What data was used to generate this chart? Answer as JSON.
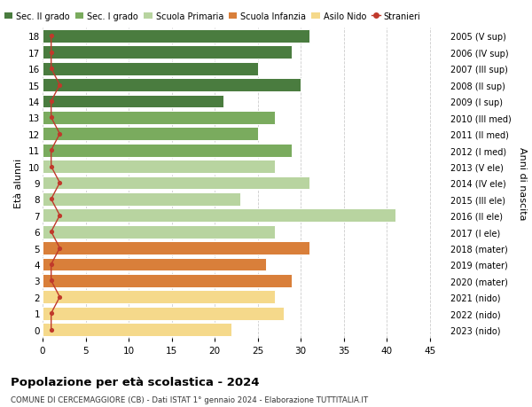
{
  "ages": [
    18,
    17,
    16,
    15,
    14,
    13,
    12,
    11,
    10,
    9,
    8,
    7,
    6,
    5,
    4,
    3,
    2,
    1,
    0
  ],
  "right_labels": [
    "2005 (V sup)",
    "2006 (IV sup)",
    "2007 (III sup)",
    "2008 (II sup)",
    "2009 (I sup)",
    "2010 (III med)",
    "2011 (II med)",
    "2012 (I med)",
    "2013 (V ele)",
    "2014 (IV ele)",
    "2015 (III ele)",
    "2016 (II ele)",
    "2017 (I ele)",
    "2018 (mater)",
    "2019 (mater)",
    "2020 (mater)",
    "2021 (nido)",
    "2022 (nido)",
    "2023 (nido)"
  ],
  "bar_values": [
    31,
    29,
    25,
    30,
    21,
    27,
    25,
    29,
    27,
    31,
    23,
    41,
    27,
    31,
    26,
    29,
    27,
    28,
    22
  ],
  "stranieri_values": [
    1,
    1,
    1,
    2,
    1,
    1,
    2,
    1,
    1,
    2,
    1,
    2,
    1,
    2,
    1,
    1,
    2,
    1,
    1
  ],
  "bar_colors": [
    "#4a7c3f",
    "#4a7c3f",
    "#4a7c3f",
    "#4a7c3f",
    "#4a7c3f",
    "#7aab5e",
    "#7aab5e",
    "#7aab5e",
    "#b8d4a0",
    "#b8d4a0",
    "#b8d4a0",
    "#b8d4a0",
    "#b8d4a0",
    "#d97f3a",
    "#d97f3a",
    "#d97f3a",
    "#f5d98b",
    "#f5d98b",
    "#f5d98b"
  ],
  "legend_labels": [
    "Sec. II grado",
    "Sec. I grado",
    "Scuola Primaria",
    "Scuola Infanzia",
    "Asilo Nido",
    "Stranieri"
  ],
  "legend_colors": [
    "#4a7c3f",
    "#7aab5e",
    "#b8d4a0",
    "#d97f3a",
    "#f5d98b",
    "#c0392b"
  ],
  "ylabel_left": "Età alunni",
  "ylabel_right": "Anni di nascita",
  "title": "Popolazione per età scolastica - 2024",
  "subtitle": "COMUNE DI CERCEMAGGIORE (CB) - Dati ISTAT 1° gennaio 2024 - Elaborazione TUTTITALIA.IT",
  "xlim": [
    0,
    47
  ],
  "xticks": [
    0,
    5,
    10,
    15,
    20,
    25,
    30,
    35,
    40,
    45
  ],
  "background_color": "#ffffff",
  "grid_color": "#cccccc",
  "stranieri_color": "#c0392b"
}
